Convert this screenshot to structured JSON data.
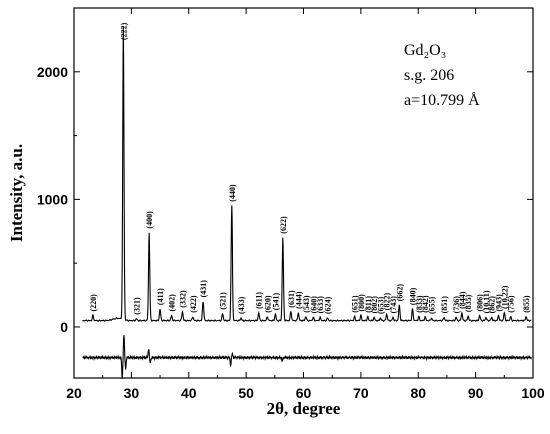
{
  "chart_data": {
    "type": "line",
    "xlabel": "2θ, degree",
    "ylabel": "Intensity, a.u.",
    "xlim": [
      20,
      100
    ],
    "ylim": [
      -400,
      2500
    ],
    "xticks": [
      20,
      30,
      40,
      50,
      60,
      70,
      80,
      90,
      100
    ],
    "yticks": [
      0,
      1000,
      2000
    ],
    "annotations": {
      "compound": "Gd₂O₃",
      "space_group": "s.g. 206",
      "lattice": "a=10.799 Å"
    },
    "series": [
      {
        "baseline": 50,
        "peaks": [
          {
            "hkl": "(220)",
            "x": 23.3,
            "y": 40
          },
          {
            "hkl": "(222)",
            "x": 28.6,
            "y": 2290
          },
          {
            "hkl": "(321)",
            "x": 30.9,
            "y": 15
          },
          {
            "hkl": "(400)",
            "x": 33.1,
            "y": 690
          },
          {
            "hkl": "(411)",
            "x": 35.0,
            "y": 90
          },
          {
            "hkl": "(402)",
            "x": 37.0,
            "y": 40
          },
          {
            "hkl": "(332)",
            "x": 38.9,
            "y": 70
          },
          {
            "hkl": "(422)",
            "x": 40.7,
            "y": 30
          },
          {
            "hkl": "(431)",
            "x": 42.5,
            "y": 150
          },
          {
            "hkl": "(521)",
            "x": 45.9,
            "y": 55
          },
          {
            "hkl": "(440)",
            "x": 47.5,
            "y": 900
          },
          {
            "hkl": "(433)",
            "x": 49.1,
            "y": 20
          },
          {
            "hkl": "(611)",
            "x": 52.2,
            "y": 60
          },
          {
            "hkl": "(620)",
            "x": 53.7,
            "y": 30
          },
          {
            "hkl": "(541)",
            "x": 55.1,
            "y": 50
          },
          {
            "hkl": "(622)",
            "x": 56.4,
            "y": 650
          },
          {
            "hkl": "(631)",
            "x": 57.8,
            "y": 70
          },
          {
            "hkl": "(444)",
            "x": 59.1,
            "y": 60
          },
          {
            "hkl": "(543)",
            "x": 60.4,
            "y": 30
          },
          {
            "hkl": "(640)",
            "x": 61.7,
            "y": 25
          },
          {
            "hkl": "(633)",
            "x": 62.9,
            "y": 25
          },
          {
            "hkl": "(624)",
            "x": 64.2,
            "y": 20
          },
          {
            "hkl": "(651)",
            "x": 68.9,
            "y": 30
          },
          {
            "hkl": "(800)",
            "x": 70.0,
            "y": 40
          },
          {
            "hkl": "(811)",
            "x": 71.2,
            "y": 30
          },
          {
            "hkl": "(802)",
            "x": 72.3,
            "y": 25
          },
          {
            "hkl": "(653)",
            "x": 73.4,
            "y": 20
          },
          {
            "hkl": "(822)",
            "x": 74.5,
            "y": 50
          },
          {
            "hkl": "(743)",
            "x": 75.6,
            "y": 25
          },
          {
            "hkl": "(662)",
            "x": 76.7,
            "y": 120
          },
          {
            "hkl": "(840)",
            "x": 79.0,
            "y": 90
          },
          {
            "hkl": "(833)",
            "x": 80.1,
            "y": 30
          },
          {
            "hkl": "(842)",
            "x": 81.2,
            "y": 30
          },
          {
            "hkl": "(655)",
            "x": 82.3,
            "y": 20
          },
          {
            "hkl": "(851)",
            "x": 84.5,
            "y": 25
          },
          {
            "hkl": "(736)",
            "x": 86.6,
            "y": 25
          },
          {
            "hkl": "(844)",
            "x": 87.6,
            "y": 60
          },
          {
            "hkl": "(835)",
            "x": 88.7,
            "y": 35
          },
          {
            "hkl": "(806)",
            "x": 90.7,
            "y": 40
          },
          {
            "hkl": "(10,11)",
            "x": 91.8,
            "y": 25
          },
          {
            "hkl": "(862)",
            "x": 92.8,
            "y": 25
          },
          {
            "hkl": "(943)",
            "x": 94.0,
            "y": 40
          },
          {
            "hkl": "(10,22)",
            "x": 95.0,
            "y": 60
          },
          {
            "hkl": "(756)",
            "x": 96.1,
            "y": 30
          },
          {
            "hkl": "(855)",
            "x": 98.8,
            "y": 30
          }
        ]
      },
      {
        "offset": -240,
        "spikes": [
          {
            "x": 28.4,
            "y": -160
          },
          {
            "x": 28.7,
            "y": 180
          },
          {
            "x": 29.0,
            "y": -90
          },
          {
            "x": 33.0,
            "y": 70
          },
          {
            "x": 33.3,
            "y": -40
          },
          {
            "x": 47.3,
            "y": -60
          },
          {
            "x": 47.6,
            "y": 30
          },
          {
            "x": 56.3,
            "y": -30
          }
        ]
      }
    ]
  }
}
